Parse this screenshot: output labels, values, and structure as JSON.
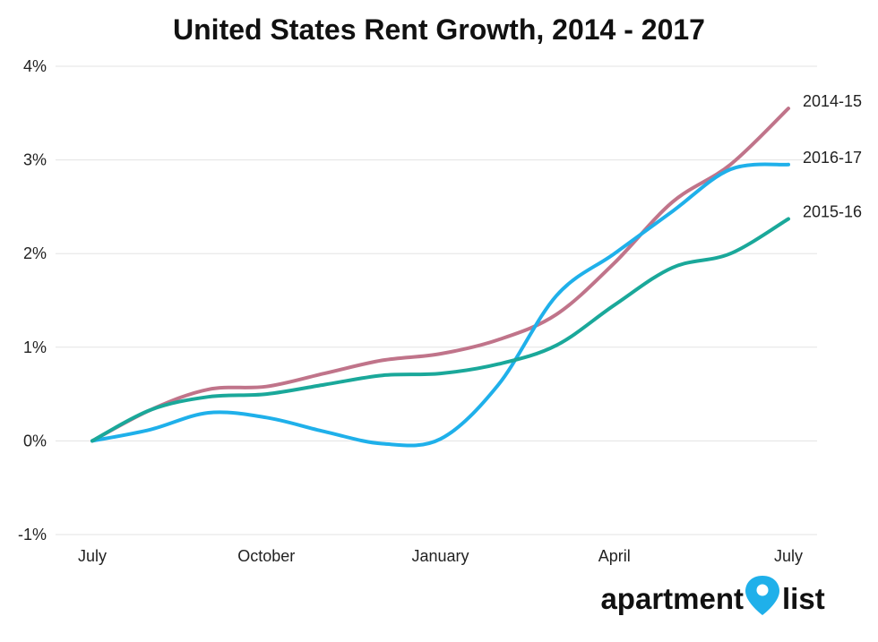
{
  "chart_data": {
    "type": "line",
    "title": "United States Rent Growth, 2014 - 2017",
    "xlabel": "",
    "ylabel": "",
    "x_ticks": [
      "July",
      "October",
      "January",
      "April",
      "July"
    ],
    "y_ticks": [
      "4%",
      "3%",
      "2%",
      "1%",
      "0%",
      "-1%"
    ],
    "ylim": [
      -1,
      4
    ],
    "x": [
      0,
      1,
      2,
      3,
      4,
      5,
      6,
      7,
      8,
      9,
      10,
      11,
      12
    ],
    "grid": "horizontal",
    "series": [
      {
        "name": "2014-15",
        "color": "#c0748a",
        "values": [
          0.0,
          0.33,
          0.55,
          0.58,
          0.72,
          0.86,
          0.93,
          1.08,
          1.35,
          1.9,
          2.55,
          2.95,
          3.55
        ]
      },
      {
        "name": "2016-17",
        "color": "#1fb0ea",
        "values": [
          0.0,
          0.12,
          0.3,
          0.25,
          0.1,
          -0.03,
          0.02,
          0.6,
          1.55,
          2.0,
          2.45,
          2.9,
          2.95
        ]
      },
      {
        "name": "2015-16",
        "color": "#1aa89a",
        "values": [
          0.0,
          0.33,
          0.47,
          0.5,
          0.6,
          0.7,
          0.72,
          0.82,
          1.02,
          1.45,
          1.85,
          2.0,
          2.37
        ]
      }
    ]
  },
  "logo": {
    "left": "apartment",
    "right": "list"
  }
}
